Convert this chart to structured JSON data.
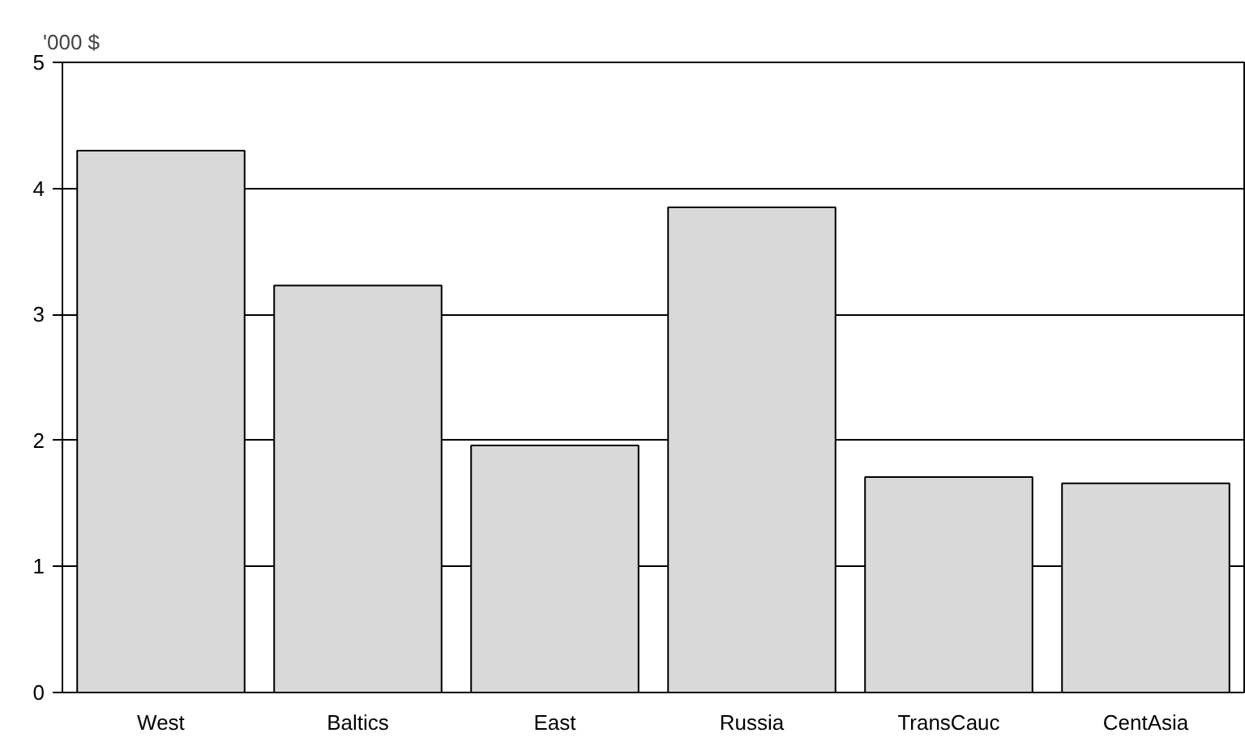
{
  "chart_data": {
    "type": "bar",
    "ylabel": "'000 $",
    "categories": [
      "West",
      "Baltics",
      "East",
      "Russia",
      "TransCauc",
      "CentAsia"
    ],
    "values": [
      4.3,
      3.23,
      1.96,
      3.85,
      1.71,
      1.66
    ],
    "color": "#d9d9d9",
    "ylim": [
      0,
      5
    ],
    "yticks": [
      0,
      1,
      2,
      3,
      4,
      5
    ],
    "grid": "y"
  }
}
